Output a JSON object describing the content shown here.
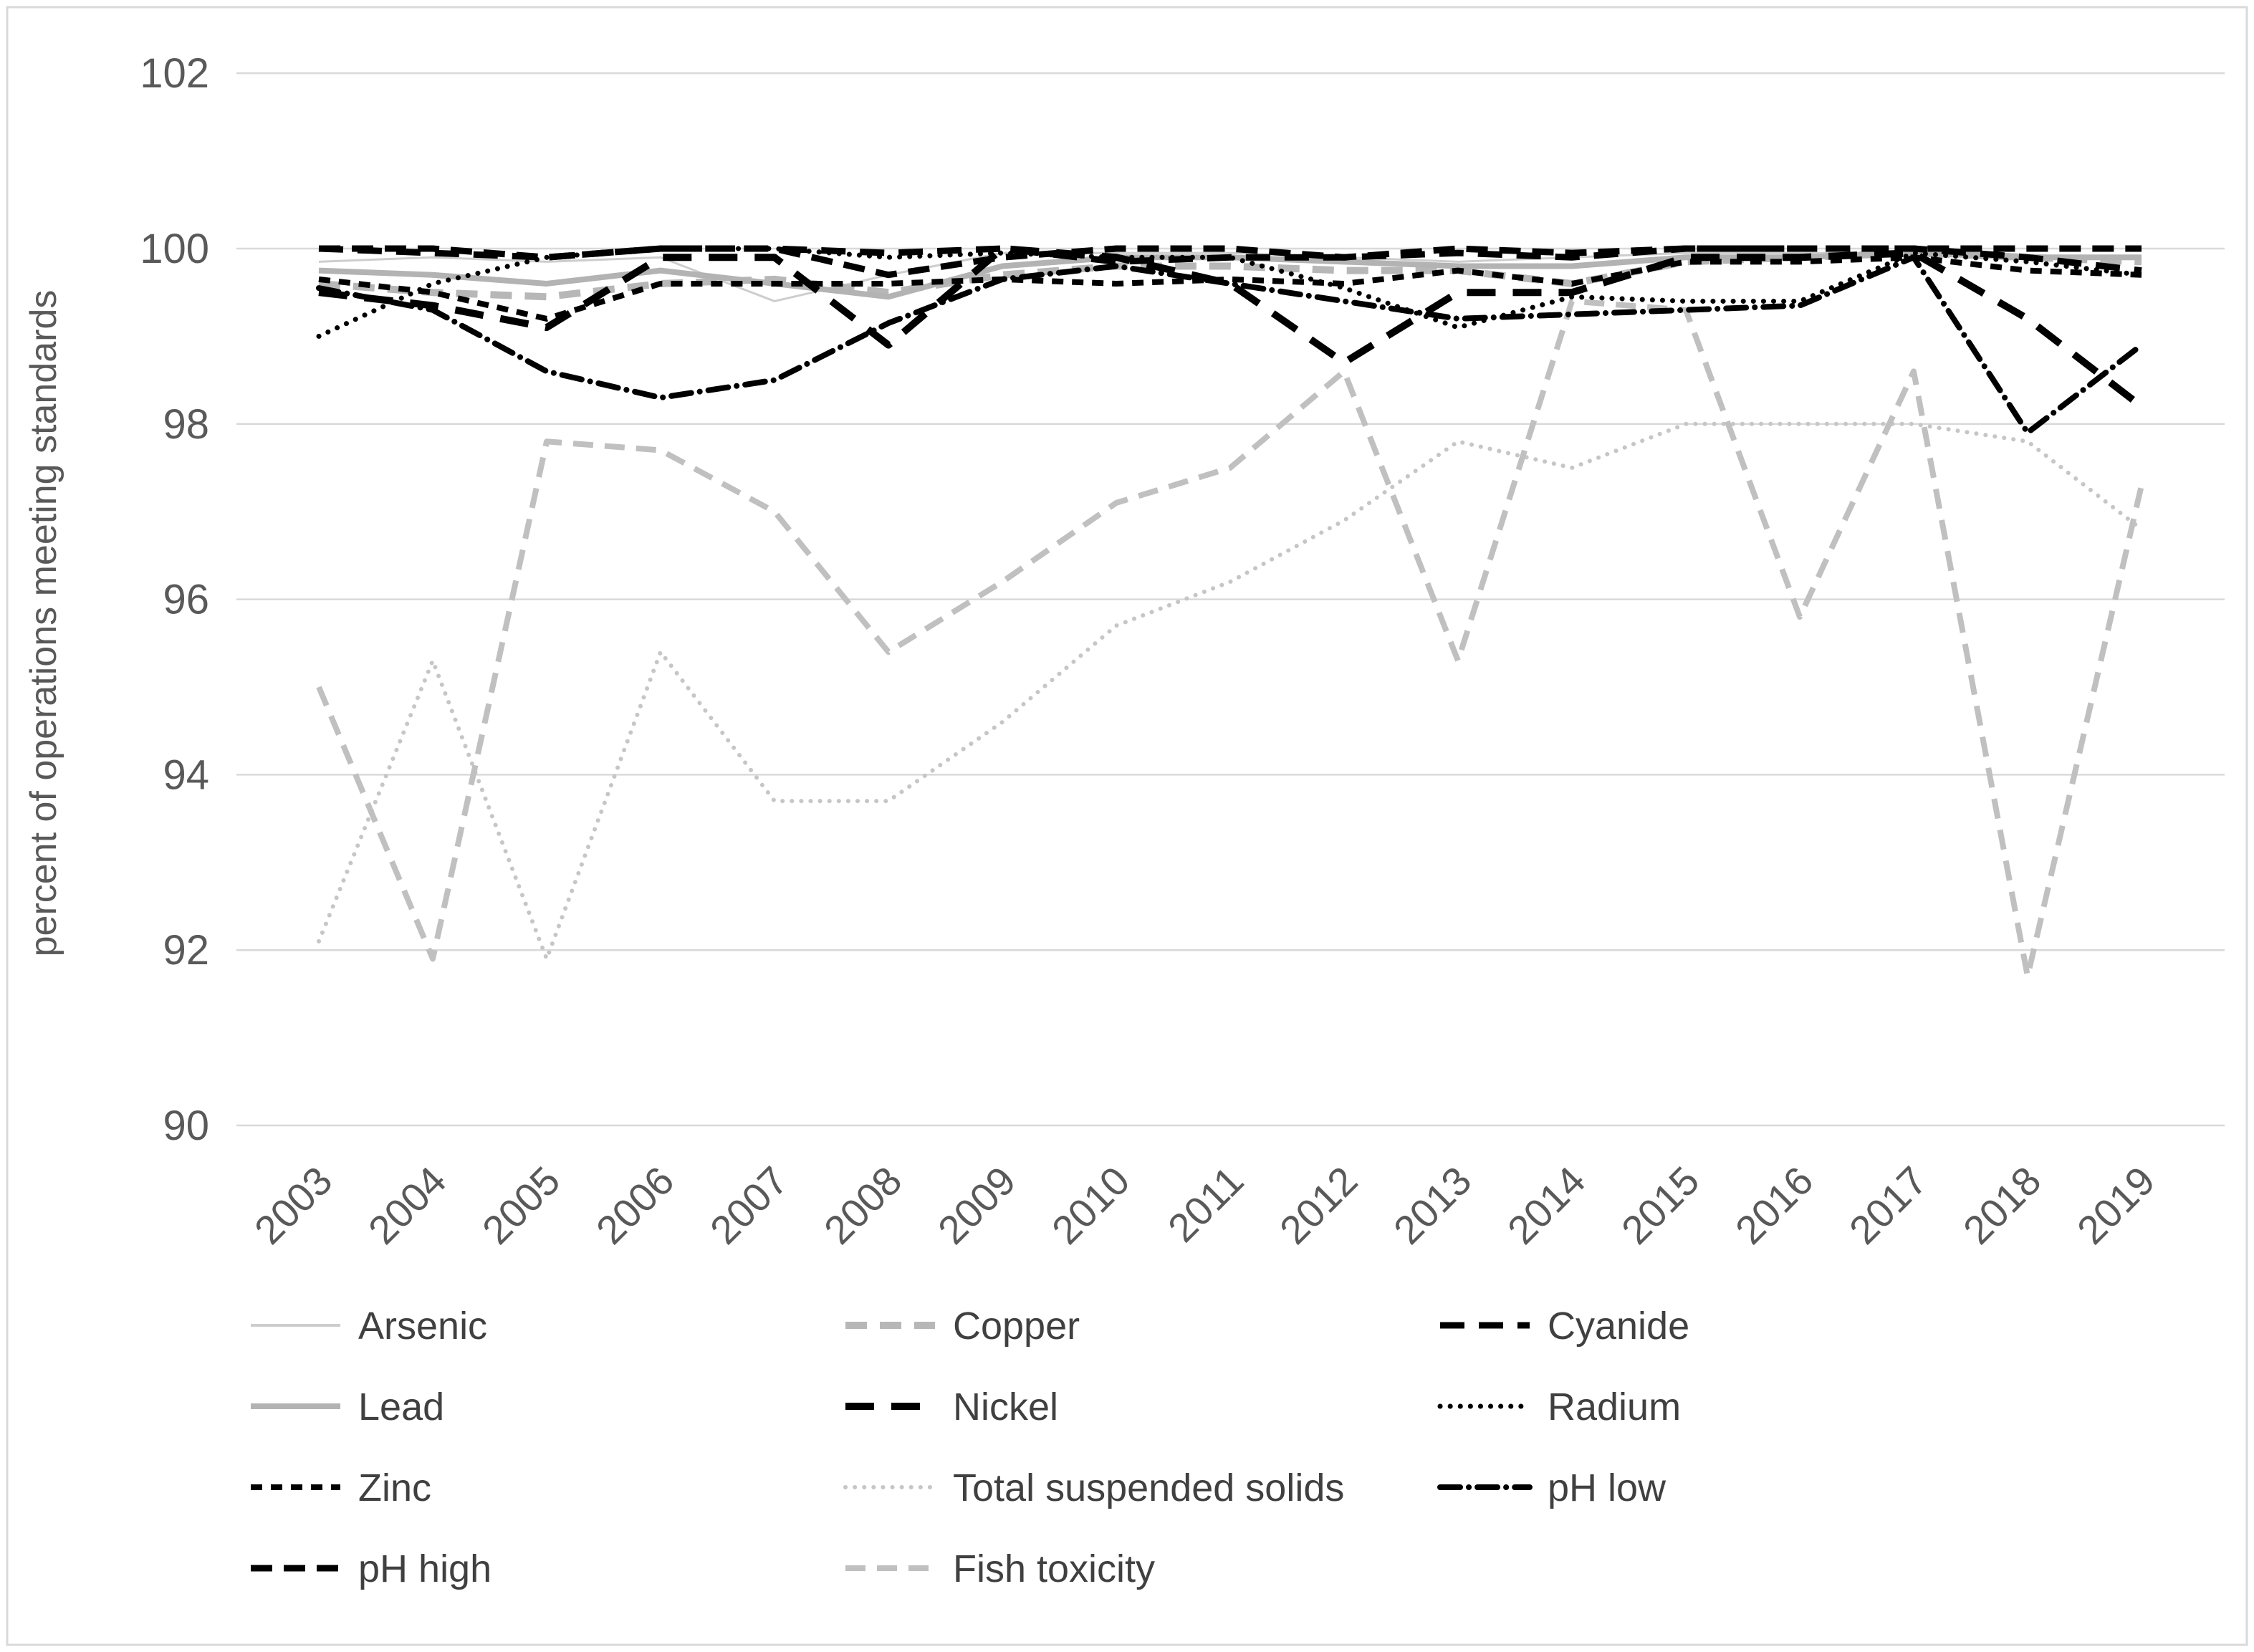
{
  "chart_data": {
    "type": "line",
    "title": "",
    "ylabel": "percent of operations meeting standards",
    "xlabel": "",
    "ylim": [
      90,
      102
    ],
    "y_ticks": [
      102,
      100,
      98,
      96,
      94,
      92,
      90
    ],
    "grid": "horizontal",
    "legend_position": "bottom-3-columns",
    "categories": [
      "2003",
      "2004",
      "2005",
      "2006",
      "2007",
      "2008",
      "2009",
      "2010",
      "2011",
      "2012",
      "2013",
      "2014",
      "2015",
      "2016",
      "2017",
      "2018",
      "2019"
    ],
    "series": [
      {
        "name": "Arsenic",
        "color": "#cdcdcd",
        "width": 3,
        "dash": "none",
        "values": [
          99.85,
          99.9,
          99.85,
          99.9,
          99.4,
          99.7,
          99.95,
          99.95,
          99.95,
          99.9,
          99.85,
          99.9,
          99.95,
          99.95,
          99.95,
          99.9,
          99.9
        ]
      },
      {
        "name": "Copper",
        "color": "#b7b7b7",
        "width": 10,
        "dash": "30 18",
        "values": [
          99.6,
          99.5,
          99.45,
          99.6,
          99.65,
          99.5,
          99.7,
          99.8,
          99.8,
          99.75,
          99.75,
          99.6,
          99.85,
          99.9,
          99.95,
          99.9,
          99.85
        ]
      },
      {
        "name": "Lead",
        "color": "#b3b3b3",
        "width": 8,
        "dash": "none",
        "values": [
          99.75,
          99.7,
          99.6,
          99.75,
          99.6,
          99.45,
          99.8,
          99.9,
          99.9,
          99.85,
          99.8,
          99.8,
          99.9,
          99.9,
          99.95,
          99.9,
          99.9
        ]
      },
      {
        "name": "Total suspended solids",
        "color": "#c6c6c6",
        "width": 6,
        "dash": "0.1 13",
        "cap": "round",
        "values": [
          92.1,
          95.3,
          91.9,
          95.4,
          93.7,
          93.7,
          94.6,
          95.7,
          96.2,
          96.9,
          97.8,
          97.5,
          98.0,
          98.0,
          98.0,
          97.8,
          96.8
        ]
      },
      {
        "name": "Fish toxicity",
        "color": "#c0c0c0",
        "width": 8,
        "dash": "28 16",
        "values": [
          95.0,
          91.9,
          97.8,
          97.7,
          97.0,
          95.4,
          96.2,
          97.1,
          97.5,
          98.6,
          95.3,
          99.4,
          99.3,
          95.8,
          98.6,
          91.7,
          97.3
        ]
      },
      {
        "name": "Cyanide",
        "color": "#000000",
        "width": 9,
        "dash": "34 20",
        "values": [
          100,
          99.95,
          99.9,
          100,
          100,
          99.95,
          100,
          99.85,
          99.9,
          99.9,
          99.95,
          99.9,
          100,
          100,
          100,
          99.9,
          99.75
        ]
      },
      {
        "name": "Nickel",
        "color": "#000000",
        "width": 10,
        "dash": "40 24",
        "values": [
          99.5,
          99.35,
          99.1,
          99.9,
          99.9,
          98.9,
          100,
          99.9,
          99.6,
          98.7,
          99.5,
          99.5,
          99.9,
          99.9,
          99.95,
          99.2,
          98.2
        ]
      },
      {
        "name": "Radium",
        "color": "#000000",
        "width": 7,
        "dash": "0.1 14",
        "cap": "round",
        "values": [
          99.0,
          99.6,
          99.9,
          100,
          100,
          99.9,
          99.95,
          99.9,
          99.9,
          99.55,
          99.1,
          99.45,
          99.4,
          99.4,
          99.95,
          99.85,
          99.7
        ]
      },
      {
        "name": "Zinc",
        "color": "#000000",
        "width": 8,
        "dash": "16 12",
        "values": [
          99.65,
          99.5,
          99.2,
          99.6,
          99.6,
          99.6,
          99.65,
          99.6,
          99.65,
          99.6,
          99.75,
          99.6,
          99.85,
          99.85,
          99.9,
          99.75,
          99.7
        ]
      },
      {
        "name": "pH low",
        "color": "#000000",
        "width": 8,
        "dash": "28 12 0.1 12",
        "cap": "round",
        "values": [
          99.55,
          99.3,
          98.6,
          98.3,
          98.5,
          99.15,
          99.65,
          99.8,
          99.6,
          99.4,
          99.2,
          99.25,
          99.3,
          99.35,
          99.9,
          97.9,
          98.9
        ]
      },
      {
        "name": "pH high",
        "color": "#000000",
        "width": 9,
        "dash": "30 16",
        "values": [
          100,
          100,
          99.9,
          100,
          100,
          99.7,
          99.9,
          100,
          100,
          99.9,
          100,
          99.95,
          100,
          100,
          100,
          100,
          100
        ]
      }
    ],
    "legend_order": [
      "Arsenic",
      "Copper",
      "Cyanide",
      "Lead",
      "Nickel",
      "Radium",
      "Zinc",
      "Total suspended solids",
      "pH low",
      "pH high",
      "Fish toxicity"
    ]
  },
  "layout_note_colors": {
    "axis_text": "#595959",
    "legend_text": "#404040",
    "gridline": "#d9d9d9",
    "frame": "#d9d9d9"
  }
}
